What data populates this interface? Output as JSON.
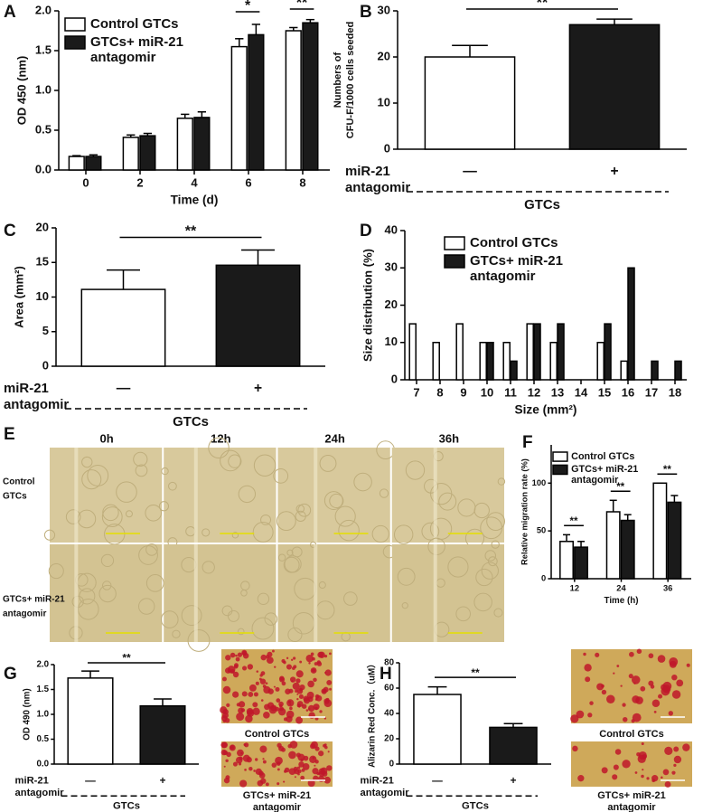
{
  "chart_data": [
    {
      "panel": "A",
      "type": "bar",
      "categories": [
        "0",
        "2",
        "4",
        "6",
        "8"
      ],
      "x_label": "Time (d)",
      "y_label": "OD 450 (nm)",
      "ylim": [
        0,
        2
      ],
      "yticks": [
        {
          "value": 0,
          "label": "0.0"
        },
        {
          "value": 0.5,
          "label": "0.5"
        },
        {
          "value": 1,
          "label": "1.0"
        },
        {
          "value": 1.5,
          "label": "1.5"
        },
        {
          "value": 2,
          "label": "2.0"
        }
      ],
      "series": [
        {
          "name": "Control GTCs",
          "color": "#ffffff",
          "values": [
            0.17,
            0.41,
            0.65,
            1.55,
            1.75
          ],
          "errors": [
            0.01,
            0.03,
            0.05,
            0.1,
            0.04
          ]
        },
        {
          "name": "GTCs+ miR-21 antagomir",
          "color": "#1a1a1a",
          "values": [
            0.17,
            0.43,
            0.66,
            1.7,
            1.85
          ],
          "errors": [
            0.02,
            0.03,
            0.07,
            0.13,
            0.04
          ]
        }
      ],
      "annotations": [
        {
          "text": "*",
          "category": "6"
        },
        {
          "text": "**",
          "category": "8"
        }
      ],
      "legend": "upper left"
    },
    {
      "panel": "B",
      "type": "bar",
      "categories": [
        "—",
        "+"
      ],
      "values": [
        20,
        27
      ],
      "errors": [
        2.5,
        1.2
      ],
      "colors": [
        "#ffffff",
        "#1a1a1a"
      ],
      "ylim": [
        0,
        30
      ],
      "yticks": [
        0,
        10,
        20,
        30
      ],
      "y_label": [
        "Numbers of",
        "CFU-F/1000 cells seeded"
      ],
      "row_label": [
        "miR-21",
        "antagomir"
      ],
      "group_label": "GTCs",
      "annotations": [
        {
          "text": "**"
        }
      ]
    },
    {
      "panel": "C",
      "type": "bar",
      "categories": [
        "—",
        "+"
      ],
      "values": [
        11.1,
        14.6
      ],
      "errors": [
        2.8,
        2.2
      ],
      "colors": [
        "#ffffff",
        "#1a1a1a"
      ],
      "ylim": [
        0,
        20
      ],
      "yticks": [
        0,
        5,
        10,
        15,
        20
      ],
      "y_label": "Area (mm²)",
      "row_label": [
        "miR-21",
        "antagomir"
      ],
      "group_label": "GTCs",
      "annotations": [
        {
          "text": "**"
        }
      ]
    },
    {
      "panel": "D",
      "type": "bar",
      "categories": [
        "7",
        "8",
        "9",
        "10",
        "11",
        "12",
        "13",
        "14",
        "15",
        "16",
        "17",
        "18"
      ],
      "x_label": "Size (mm²)",
      "y_label": "Size distribution (%)",
      "ylim": [
        0,
        40
      ],
      "yticks": [
        0,
        10,
        20,
        30,
        40
      ],
      "series": [
        {
          "name": "Control GTCs",
          "color": "#ffffff",
          "values": [
            15,
            10,
            15,
            10,
            10,
            15,
            10,
            0,
            10,
            5,
            0,
            0
          ]
        },
        {
          "name": "GTCs+ miR-21 antagomir",
          "color": "#1a1a1a",
          "values": [
            0,
            0,
            0,
            10,
            5,
            15,
            15,
            0,
            15,
            30,
            5,
            5
          ]
        }
      ],
      "legend": "upper left"
    },
    {
      "panel": "F",
      "type": "bar",
      "categories": [
        "12",
        "24",
        "36"
      ],
      "x_label": "Time (h)",
      "y_label": "Relative migration rate (%)",
      "ylim": [
        0,
        140
      ],
      "yticks": [
        0,
        50,
        100
      ],
      "series": [
        {
          "name": "Control GTCs",
          "color": "#ffffff",
          "values": [
            39,
            70,
            100
          ],
          "errors": [
            7,
            12,
            0
          ]
        },
        {
          "name": "GTCs+ miR-21 antagomir",
          "color": "#1a1a1a",
          "values": [
            33,
            61,
            80
          ],
          "errors": [
            6,
            6,
            7
          ]
        }
      ],
      "annotations": [
        {
          "text": "**",
          "category": "12"
        },
        {
          "text": "**",
          "category": "24"
        },
        {
          "text": "**",
          "category": "36"
        }
      ],
      "legend": "upper left"
    },
    {
      "panel": "G",
      "type": "bar",
      "categories": [
        "—",
        "+"
      ],
      "values": [
        1.73,
        1.17
      ],
      "errors": [
        0.14,
        0.14
      ],
      "colors": [
        "#ffffff",
        "#1a1a1a"
      ],
      "ylim": [
        0,
        2
      ],
      "yticks": [
        {
          "value": 0,
          "label": "0.0"
        },
        {
          "value": 0.5,
          "label": "0.5"
        },
        {
          "value": 1,
          "label": "1.0"
        },
        {
          "value": 1.5,
          "label": "1.5"
        },
        {
          "value": 2,
          "label": "2.0"
        }
      ],
      "y_label": "OD 490 (nm)",
      "row_label": [
        "miR-21",
        "antagomir"
      ],
      "group_label": "GTCs",
      "annotations": [
        {
          "text": "**"
        }
      ]
    },
    {
      "panel": "H",
      "type": "bar",
      "categories": [
        "—",
        "+"
      ],
      "values": [
        55,
        29
      ],
      "errors": [
        6,
        3
      ],
      "colors": [
        "#ffffff",
        "#1a1a1a"
      ],
      "ylim": [
        0,
        80
      ],
      "yticks": [
        0,
        20,
        40,
        60,
        80
      ],
      "y_label": "Alizarin Red Conc.（uM）",
      "row_label": [
        "miR-21",
        "antagomir"
      ],
      "group_label": "GTCs",
      "annotations": [
        {
          "text": "**"
        }
      ]
    }
  ],
  "panel_E": {
    "panel": "E",
    "columns": [
      "0h",
      "12h",
      "24h",
      "36h"
    ],
    "row_labels": [
      [
        "Control",
        "GTCs"
      ],
      [
        "GTCs+ miR-21",
        "antagomir"
      ]
    ]
  },
  "photos": [
    {
      "panel": "G",
      "captions": [
        [
          "Control GTCs"
        ],
        [
          "GTCs+ miR-21",
          "antagomir"
        ]
      ]
    },
    {
      "panel": "H",
      "captions": [
        [
          "Control GTCs"
        ],
        [
          "GTCs+ miR-21",
          "antagomir"
        ]
      ]
    }
  ]
}
